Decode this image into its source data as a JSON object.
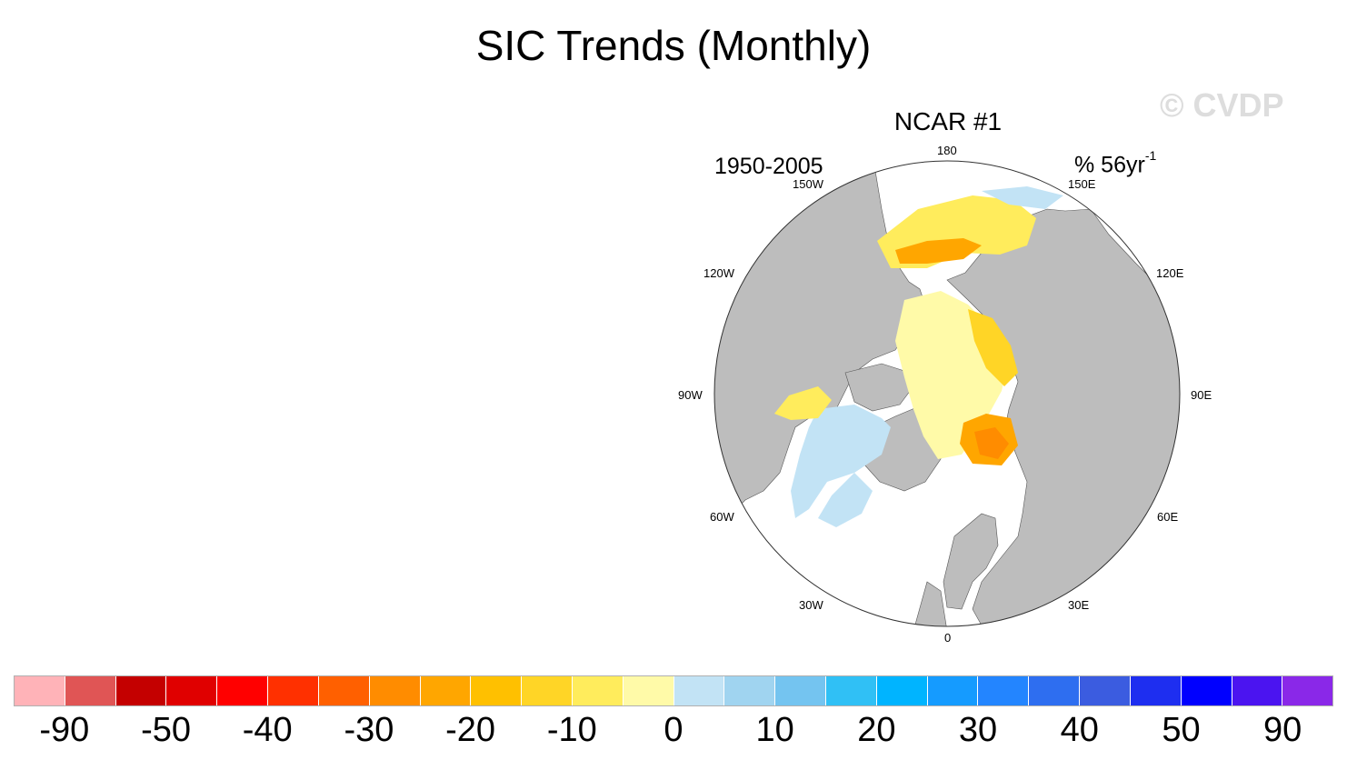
{
  "title": "SIC Trends (Monthly)",
  "watermark": "© CVDP",
  "panel": {
    "title": "NCAR #1",
    "period": "1950-2005",
    "units_main": "% 56yr",
    "units_exp": "-1"
  },
  "map": {
    "projection": "north-polar-stereographic",
    "longitude_labels": {
      "top": "180",
      "top_left": "150W",
      "top_right": "150E",
      "upper_left": "120W",
      "upper_right": "120E",
      "left": "90W",
      "right": "90E",
      "lower_left": "60W",
      "lower_right": "60E",
      "bottom_left": "30W",
      "bottom_right": "30E",
      "bottom": "0"
    },
    "land_color": "#bdbdbd",
    "ocean_color": "#ffffff"
  },
  "colorbar": {
    "colors": [
      "#ffb3b8",
      "#e05555",
      "#c40000",
      "#e00000",
      "#ff0000",
      "#ff3000",
      "#ff6000",
      "#ff8c00",
      "#ffa600",
      "#ffc000",
      "#ffd526",
      "#ffec5c",
      "#fffaa8",
      "#c2e3f5",
      "#a0d4f0",
      "#74c4f0",
      "#30c0f5",
      "#00b4ff",
      "#159bff",
      "#2385ff",
      "#2e6ef0",
      "#3b5ce0",
      "#1e2ef0",
      "#0000ff",
      "#4b14f0",
      "#8a28e8"
    ],
    "labels": [
      "-90",
      "-50",
      "-40",
      "-30",
      "-20",
      "-10",
      "0",
      "10",
      "20",
      "30",
      "40",
      "50",
      "90"
    ]
  }
}
